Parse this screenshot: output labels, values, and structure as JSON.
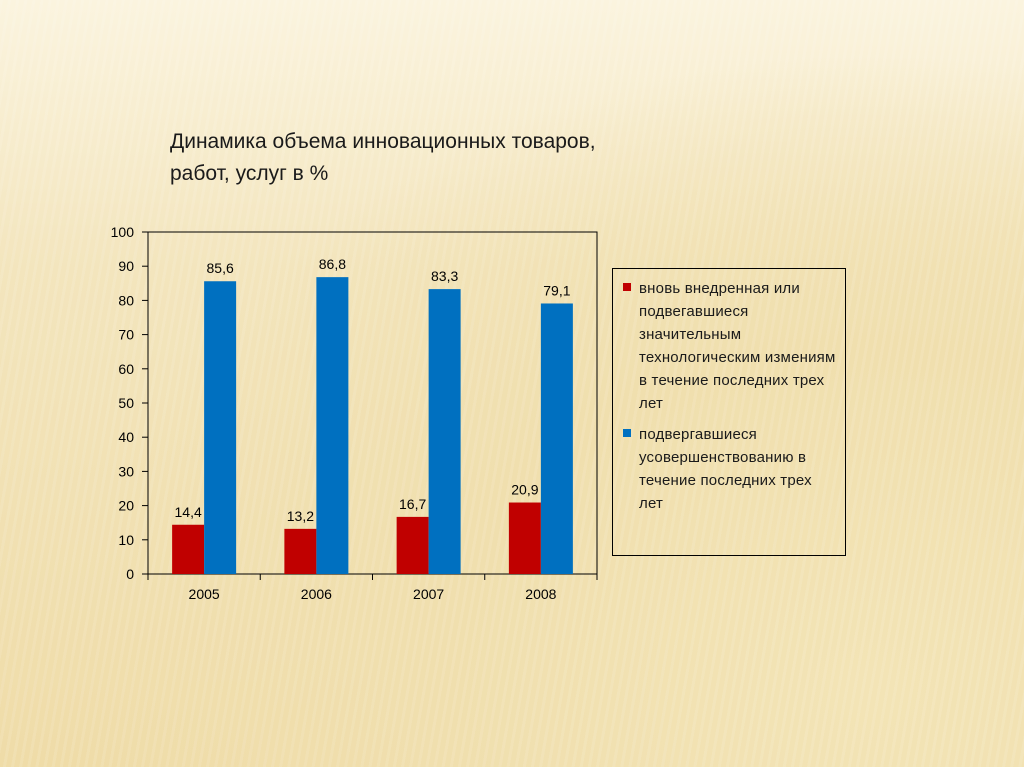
{
  "title": "Динамика объема инновационных товаров,\nработ, услуг  в %",
  "colors": {
    "series_red": "#c00000",
    "series_blue": "#0070c0"
  },
  "chart_data": {
    "type": "bar",
    "title": "Динамика объема инновационных товаров, работ, услуг  в %",
    "categories": [
      "2005",
      "2006",
      "2007",
      "2008"
    ],
    "series": [
      {
        "name": "вновь внедренная или подвегавшиеся значительным технологическим измениям в течение последних трех лет",
        "values": [
          14.4,
          13.2,
          16.7,
          20.9
        ],
        "labels": [
          "14,4",
          "13,2",
          "16,7",
          "20,9"
        ],
        "color": "#c00000"
      },
      {
        "name": "подвергавшиеся усовершенствованию в течение последних трех лет",
        "values": [
          85.6,
          86.8,
          83.3,
          79.1
        ],
        "labels": [
          "85,6",
          "86,8",
          "83,3",
          "79,1"
        ],
        "color": "#0070c0"
      }
    ],
    "ylim": [
      0,
      100
    ],
    "yticks": [
      0,
      10,
      20,
      30,
      40,
      50,
      60,
      70,
      80,
      90,
      100
    ],
    "grid": false,
    "legend": "right"
  }
}
